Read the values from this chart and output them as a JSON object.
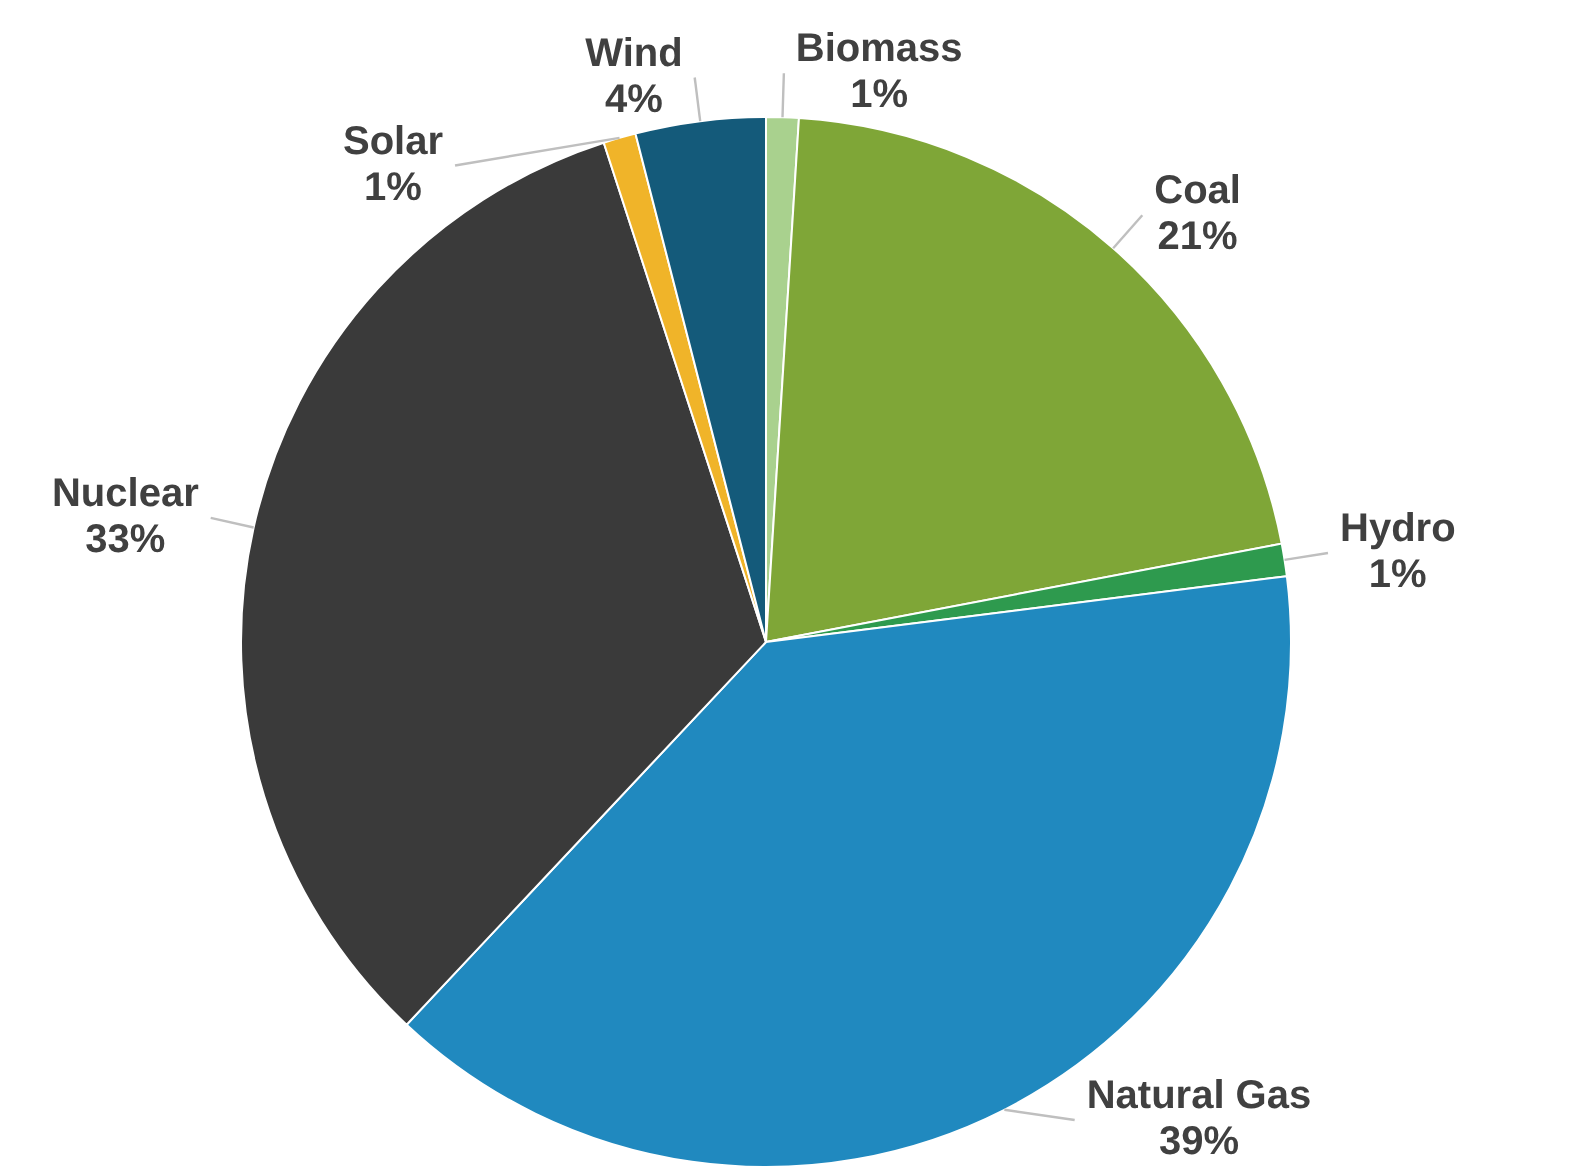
{
  "chart_data": {
    "type": "pie",
    "categories": [
      "Biomass",
      "Coal",
      "Hydro",
      "Natural Gas",
      "Nuclear",
      "Solar",
      "Wind"
    ],
    "values": [
      1,
      21,
      1,
      39,
      33,
      1,
      4
    ],
    "value_labels": [
      "1%",
      "21%",
      "1%",
      "39%",
      "33%",
      "1%",
      "4%"
    ],
    "colors": [
      "#a9d18e",
      "#7fa637",
      "#2e9a4e",
      "#2089bf",
      "#3a3a3a",
      "#f0b429",
      "#145a7a"
    ]
  }
}
